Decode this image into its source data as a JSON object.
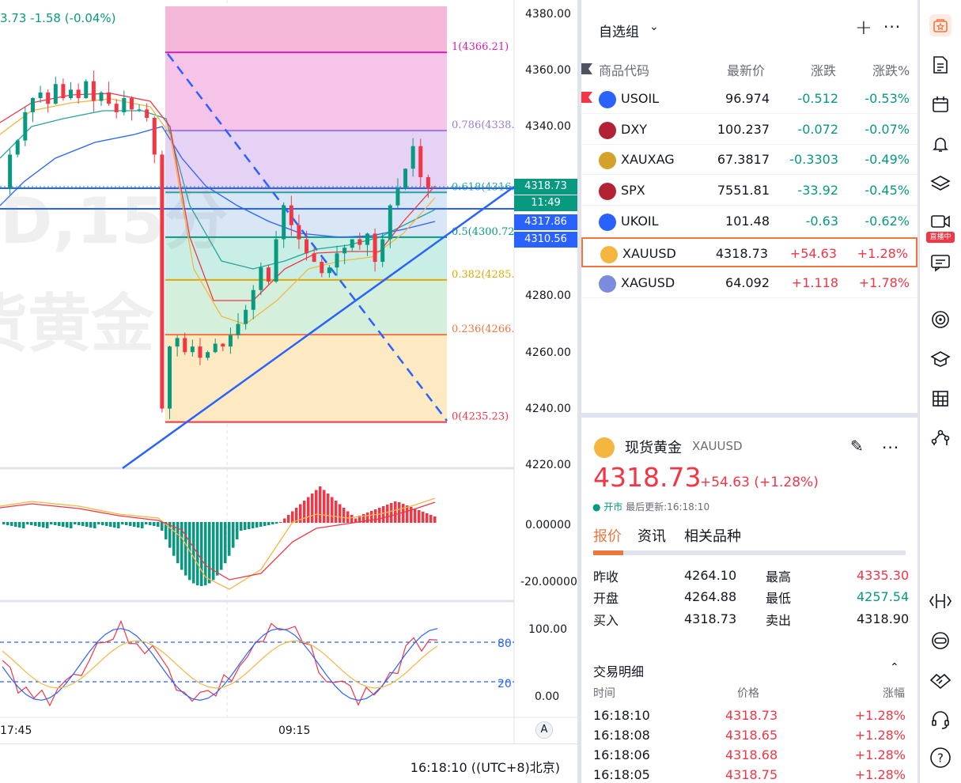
{
  "chart": {
    "header": {
      "ohlc_text": "3.73 -1.58 (-0.04%)"
    },
    "watermark": {
      "line1": "D,15分",
      "line2": "货黄金"
    },
    "price_axis": [
      "4380.00",
      "4360.00",
      "4340.00",
      "4280.00",
      "4260.00",
      "4240.00",
      "4220.00"
    ],
    "price_tags": {
      "last": "4318.73",
      "countdown": "11:49",
      "line1": "4317.86",
      "line2": "4310.56"
    },
    "fib_levels": [
      {
        "label": "1(4366.21)",
        "color": "#d81bb4"
      },
      {
        "label": "0.786(4338.",
        "color": "#9c7bd8"
      },
      {
        "label": "0.618(4316.",
        "color": "#26a69a"
      },
      {
        "label": "0.5(4300.72",
        "color": "#089981"
      },
      {
        "label": "0.382(4285.",
        "color": "#e0a800"
      },
      {
        "label": "0.236(4266.",
        "color": "#f0763f"
      },
      {
        "label": "0(4235.23)",
        "color": "#f23645"
      }
    ],
    "macd_axis": [
      "0.00000",
      "-20.00000"
    ],
    "stoch_axis": [
      "100.00",
      "80",
      "20",
      "0.00"
    ],
    "time_axis": [
      "17:45",
      "09:15"
    ],
    "auto_label": "A",
    "bottom_time": "16:18:10 ((UTC+8)北京)"
  },
  "watchlist": {
    "title": "自选组",
    "columns": {
      "symbol": "商品代码",
      "last": "最新价",
      "change": "涨跌",
      "change_pct": "涨跌%"
    },
    "rows": [
      {
        "symbol": "USOIL",
        "last": "96.974",
        "change": "-0.512",
        "change_pct": "-0.53%",
        "dir": "neg",
        "icon_color": "#2962ff",
        "flag": true
      },
      {
        "symbol": "DXY",
        "last": "100.237",
        "change": "-0.072",
        "change_pct": "-0.07%",
        "dir": "neg",
        "icon_color": "#b22234",
        "flag": false
      },
      {
        "symbol": "XAUXAG",
        "last": "67.3817",
        "change": "-0.3303",
        "change_pct": "-0.49%",
        "dir": "neg",
        "icon_color": "#d4a12a",
        "flag": false
      },
      {
        "symbol": "SPX",
        "last": "7551.81",
        "change": "-33.92",
        "change_pct": "-0.45%",
        "dir": "neg",
        "icon_color": "#b22234",
        "flag": false
      },
      {
        "symbol": "UKOIL",
        "last": "101.48",
        "change": "-0.63",
        "change_pct": "-0.62%",
        "dir": "neg",
        "icon_color": "#2962ff",
        "flag": false
      },
      {
        "symbol": "XAUUSD",
        "last": "4318.73",
        "change": "+54.63",
        "change_pct": "+1.28%",
        "dir": "pos",
        "icon_color": "#f5b640",
        "flag": false,
        "selected": true
      },
      {
        "symbol": "XAGUSD",
        "last": "64.092",
        "change": "+1.118",
        "change_pct": "+1.78%",
        "dir": "pos",
        "icon_color": "#7b8cde",
        "flag": false
      }
    ]
  },
  "detail": {
    "name": "现货黄金",
    "code": "XAUUSD",
    "price": "4318.73",
    "change": "+54.63 (+1.28%)",
    "status": "开市",
    "updated": "最后更新:16:18:10",
    "tabs": [
      "报价",
      "资讯",
      "相关品种"
    ],
    "quote": {
      "prev_close_label": "昨收",
      "prev_close": "4264.10",
      "open_label": "开盘",
      "open": "4264.88",
      "bid_label": "买入",
      "bid": "4318.73",
      "high_label": "最高",
      "high": "4335.30",
      "low_label": "最低",
      "low": "4257.54",
      "ask_label": "卖出",
      "ask": "4318.90"
    },
    "trades_title": "交易明细",
    "trade_cols": {
      "time": "时间",
      "price": "价格",
      "pct": "涨幅"
    },
    "trades": [
      {
        "time": "16:18:10",
        "price": "4318.73",
        "pct": "+1.28%"
      },
      {
        "time": "16:18:08",
        "price": "4318.65",
        "pct": "+1.28%"
      },
      {
        "time": "16:18:06",
        "price": "4318.68",
        "pct": "+1.28%"
      },
      {
        "time": "16:18:05",
        "price": "4318.75",
        "pct": "+1.28%"
      }
    ]
  },
  "toolbar": {
    "live_label": "直播中"
  }
}
